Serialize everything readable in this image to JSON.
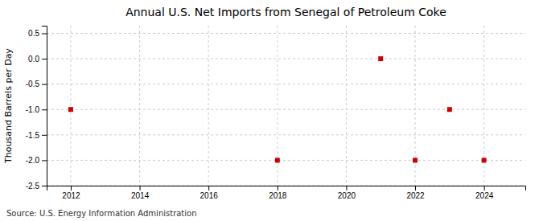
{
  "chart_data": {
    "type": "scatter",
    "title": "Annual U.S. Net Imports from Senegal of Petroleum Coke",
    "y_label": "Thousand Barrels per Day",
    "source": "Source: U.S. Energy Information Administration",
    "x": [
      2012,
      2018,
      2021,
      2022,
      2023,
      2024
    ],
    "values": [
      -1.0,
      -2.0,
      0.0,
      -2.0,
      -1.0,
      -2.0
    ],
    "color": "#cc0000",
    "marker": "square",
    "xlim": [
      2011.3,
      2025.2
    ],
    "ylim": [
      -2.5,
      0.65
    ],
    "xticks": [
      2012,
      2014,
      2016,
      2018,
      2020,
      2022,
      2024
    ],
    "yticks": [
      0.5,
      {
        "value": 0.0,
        "label": "0.0"
      },
      -0.5,
      {
        "value": -1.0,
        "label": "-1.0"
      },
      -1.5,
      {
        "value": -2.0,
        "label": "-2.0"
      },
      -2.5
    ],
    "grid": true
  }
}
